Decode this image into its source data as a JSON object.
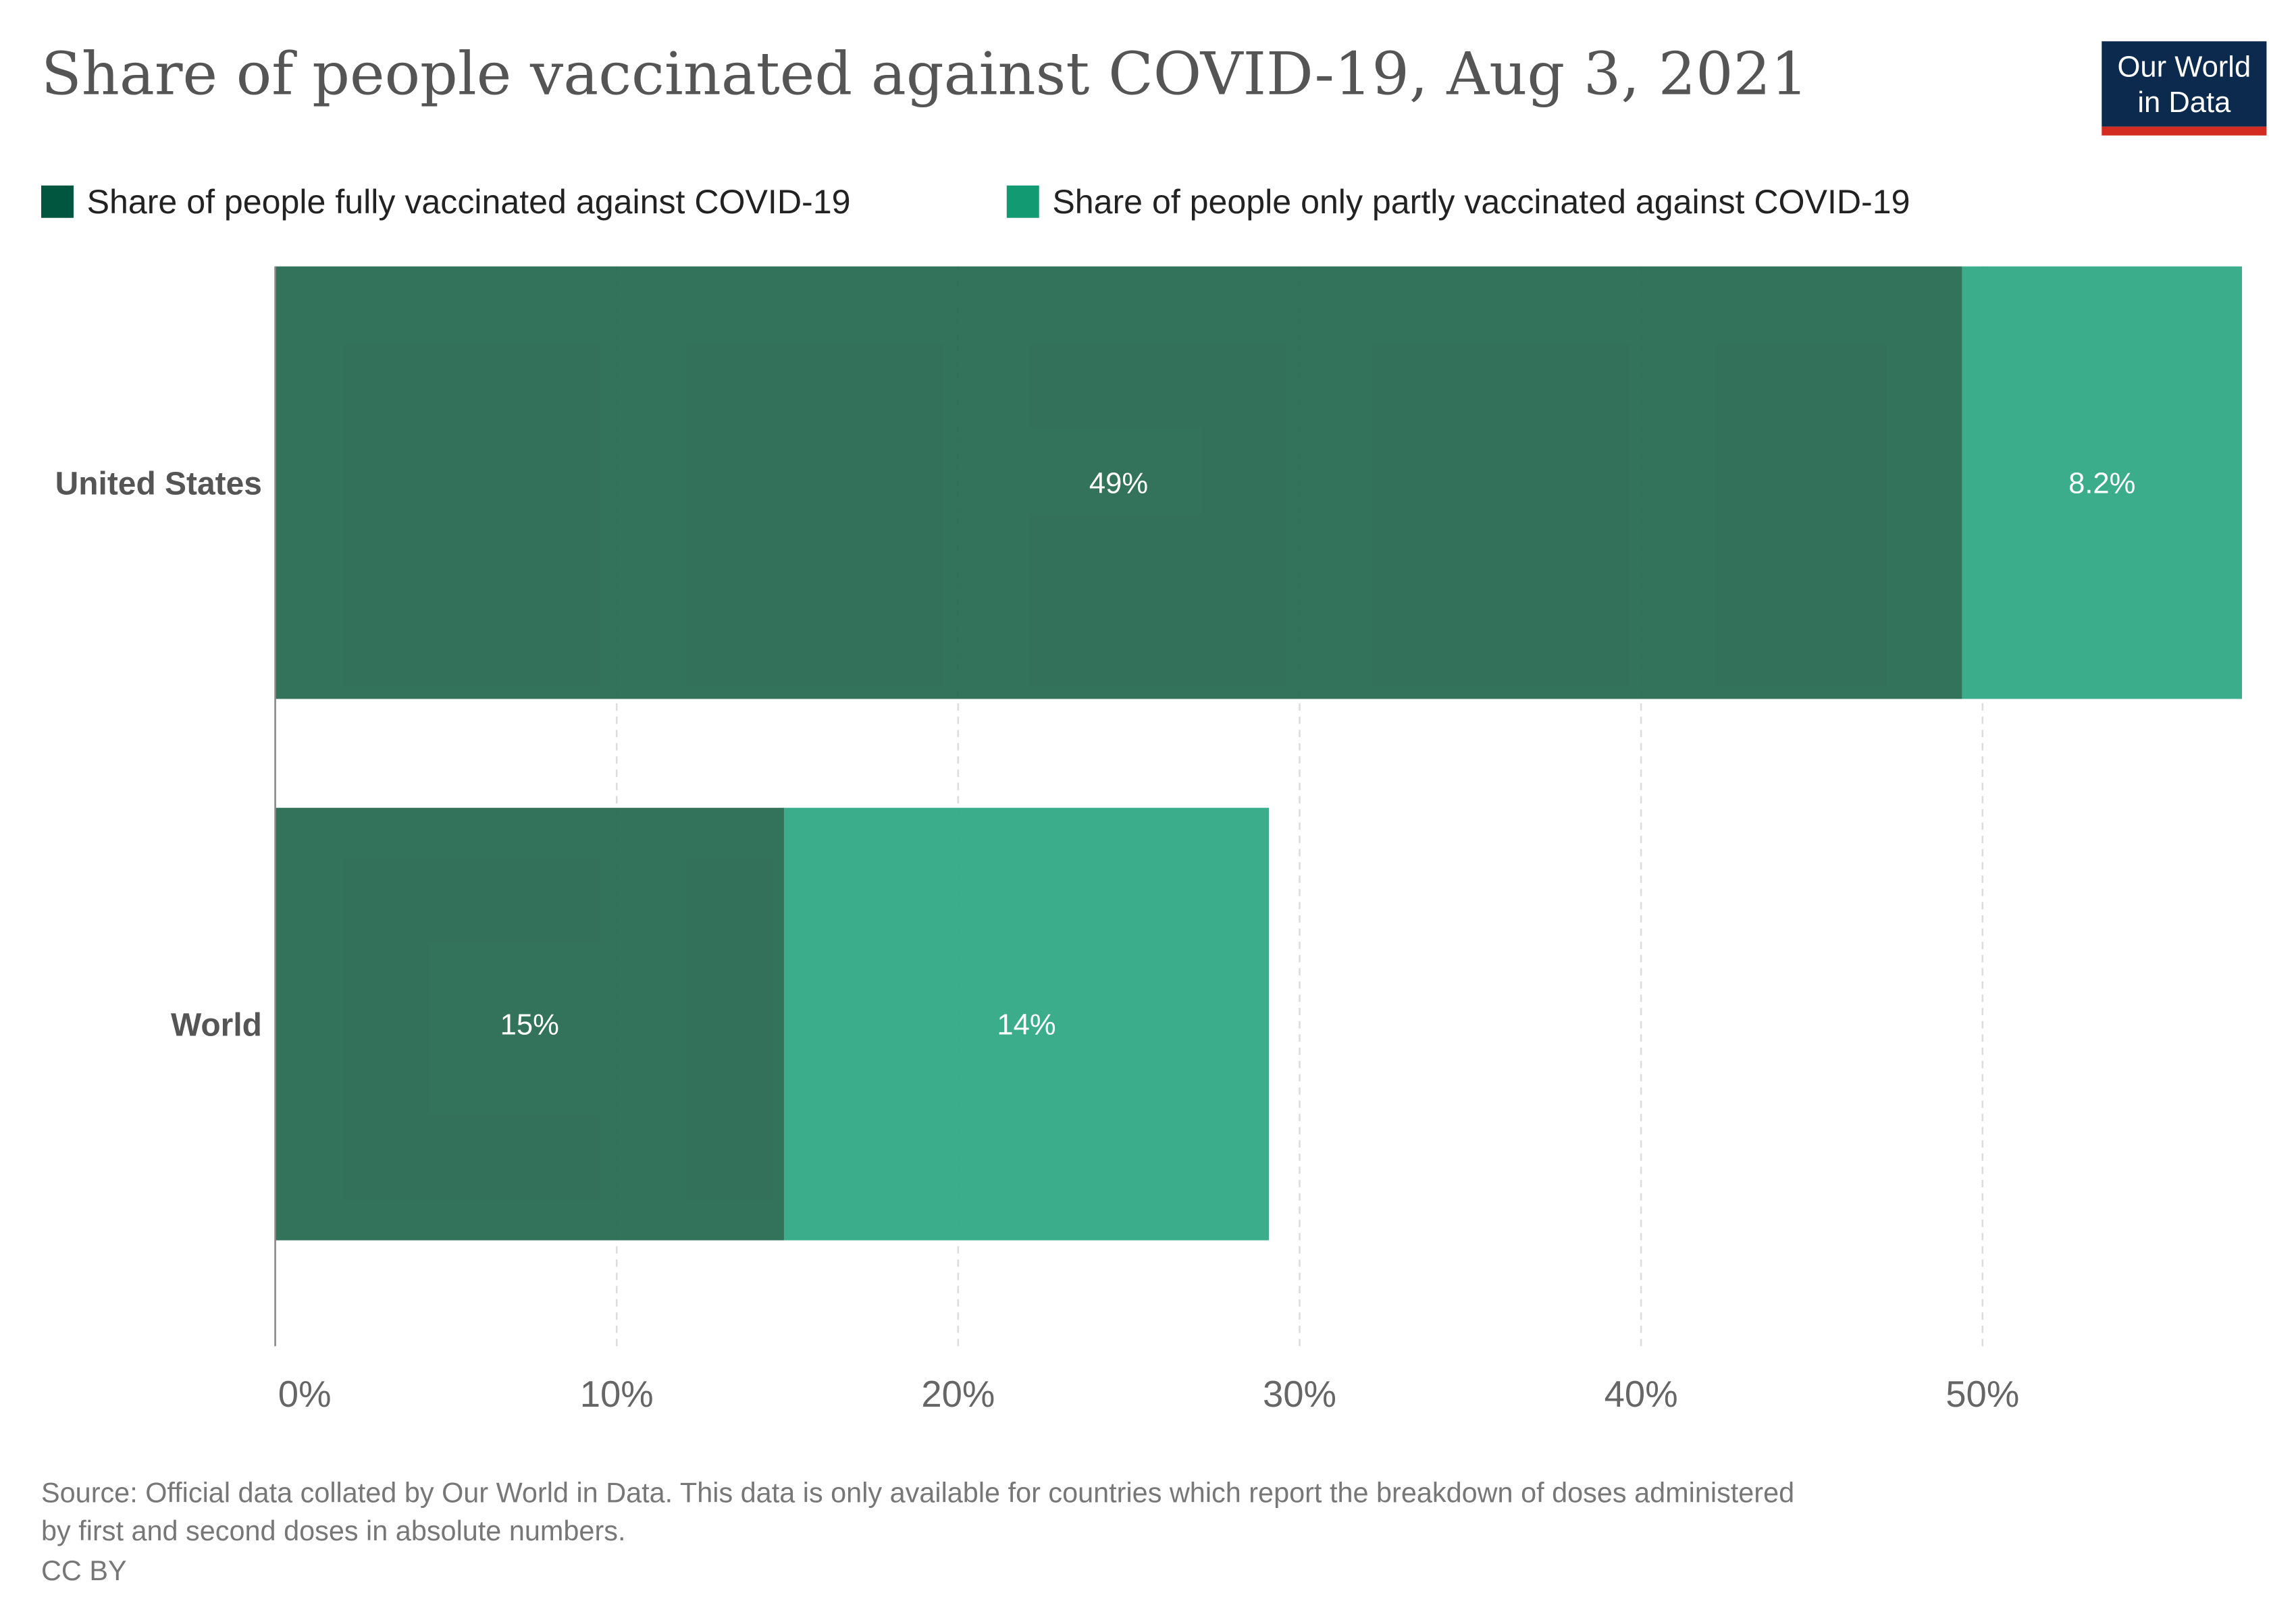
{
  "logo": {
    "line1": "Our World",
    "line2": "in Data"
  },
  "footer": {
    "source_line1": "Source: Official data collated by Our World in Data. This data is only available for countries which report the breakdown of doses administered",
    "source_line2": "by first and second doses in absolute numbers.",
    "license": "CC BY"
  },
  "chart_data": {
    "type": "bar",
    "orientation": "horizontal",
    "stacked": true,
    "title": "Share of people vaccinated against COVID-19, Aug 3, 2021",
    "categories": [
      "United States",
      "World"
    ],
    "series": [
      {
        "name": "Share of people fully vaccinated against COVID-19",
        "color": "#00563f",
        "bar_color": "#286a52",
        "values": [
          49.4,
          14.9
        ],
        "labels": [
          "49%",
          "15%"
        ]
      },
      {
        "name": "Share of people only partly vaccinated against COVID-19",
        "color": "#129b73",
        "bar_color": "#31a985",
        "values": [
          8.2,
          14.2
        ],
        "labels": [
          "8.2%",
          "14%"
        ]
      }
    ],
    "xlim": [
      0,
      57.6
    ],
    "xticks": [
      0,
      10,
      20,
      30,
      40,
      50
    ],
    "xtick_labels": [
      "0%",
      "10%",
      "20%",
      "30%",
      "40%",
      "50%"
    ],
    "grid": "vertical dashed",
    "legend_position": "top"
  }
}
